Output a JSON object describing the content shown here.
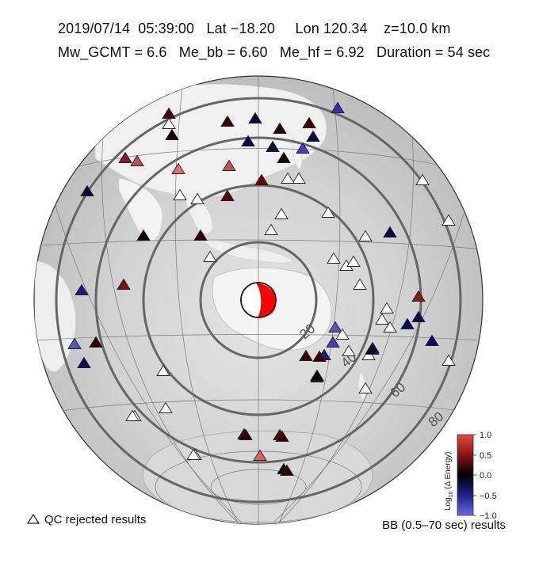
{
  "header": {
    "line1": "2019/07/14  05:39:00   Lat −18.20     Lon 120.34    z=10.0 km",
    "line2": "Mw_GCMT = 6.6   Me_bb = 6.60   Me_hf = 6.92   Duration = 54 sec"
  },
  "rings": [
    {
      "label": "20"
    },
    {
      "label": "40"
    },
    {
      "label": "60"
    },
    {
      "label": "80"
    }
  ],
  "legend": {
    "qc_label": "QC rejected results",
    "bb_label": "BB (0.5–70 sec) results"
  },
  "colorbar": {
    "title": "Log10 (Δ Energy)",
    "title_parts": {
      "pre": "Log",
      "sub": "10",
      "post": " (Δ Energy)"
    },
    "ticks": [
      "1.0",
      "0.5",
      "0.0",
      "−0.5",
      "−1.0"
    ],
    "colors": {
      "high": "#e8473f",
      "mid": "#000000",
      "low": "#5b5bd6"
    }
  },
  "beachball": {
    "fill": "#ff0000"
  },
  "stations": [
    {
      "c": "#2f2fb0"
    },
    {
      "c": "#4a0000"
    },
    {
      "c": "#ffffff"
    },
    {
      "c": "#3a0000"
    },
    {
      "c": "#1a0000"
    },
    {
      "c": "#0a0a3a"
    },
    {
      "c": "#2a0000"
    },
    {
      "c": "#3a0000"
    },
    {
      "c": "#0a0a4a"
    },
    {
      "c": "#0a0a30"
    },
    {
      "c": "#0a0a40"
    },
    {
      "c": "#4040c0"
    },
    {
      "c": "#8a1a1a"
    },
    {
      "c": "#c05050"
    },
    {
      "c": "#e07070"
    },
    {
      "c": "#d05050"
    },
    {
      "c": "#100000"
    },
    {
      "c": "#ffffff"
    },
    {
      "c": "#0a0a40"
    },
    {
      "c": "#5a0000"
    },
    {
      "c": "#6a0000"
    },
    {
      "c": "#ffffff"
    },
    {
      "c": "#ffffff"
    },
    {
      "c": "#ffffff"
    },
    {
      "c": "#ffffff"
    },
    {
      "c": "#ffffff"
    },
    {
      "c": "#ffffff"
    },
    {
      "c": "#ffffff"
    },
    {
      "c": "#ffffff"
    },
    {
      "c": "#ffffff"
    },
    {
      "c": "#ffffff"
    },
    {
      "c": "#ffffff"
    },
    {
      "c": "#1a0000"
    },
    {
      "c": "#300000"
    },
    {
      "c": "#ffffff"
    },
    {
      "c": "#0a0a40"
    },
    {
      "c": "#ffffff"
    },
    {
      "c": "#7a1010"
    },
    {
      "c": "#1a1a80"
    },
    {
      "c": "#5555c0"
    },
    {
      "c": "#400000"
    },
    {
      "c": "#1a1a80"
    },
    {
      "c": "#ffffff"
    },
    {
      "c": "#ffffff"
    },
    {
      "c": "#ffffff"
    },
    {
      "c": "#5555c0"
    },
    {
      "c": "#4040c0"
    },
    {
      "c": "#0a0a50"
    },
    {
      "c": "#300000"
    },
    {
      "c": "#0a0a60"
    },
    {
      "c": "#ffffff"
    },
    {
      "c": "#ffffff"
    },
    {
      "c": "#0a0a60"
    },
    {
      "c": "#0a0a60"
    },
    {
      "c": "#8a1a1a"
    },
    {
      "c": "#ffffff"
    },
    {
      "c": "#0a0a50"
    },
    {
      "c": "#0a0a60"
    },
    {
      "c": "#ffffff"
    },
    {
      "c": "#ffffff"
    },
    {
      "c": "#0a0a60"
    },
    {
      "c": "#3a0000"
    },
    {
      "c": "#ffffff"
    },
    {
      "c": "#ffffff"
    },
    {
      "c": "#ffffff"
    },
    {
      "c": "#0a0a30"
    },
    {
      "c": "#ffffff"
    },
    {
      "c": "#3a0000"
    },
    {
      "c": "#6a0000"
    },
    {
      "c": "#ffffff"
    },
    {
      "c": "#e06060"
    },
    {
      "c": "#1a0000"
    },
    {
      "c": "#ffffff"
    },
    {
      "c": "#ffffff"
    },
    {
      "c": "#3a0000"
    },
    {
      "c": "#2a0000"
    },
    {
      "c": "#300000"
    },
    {
      "c": "#100000"
    }
  ]
}
